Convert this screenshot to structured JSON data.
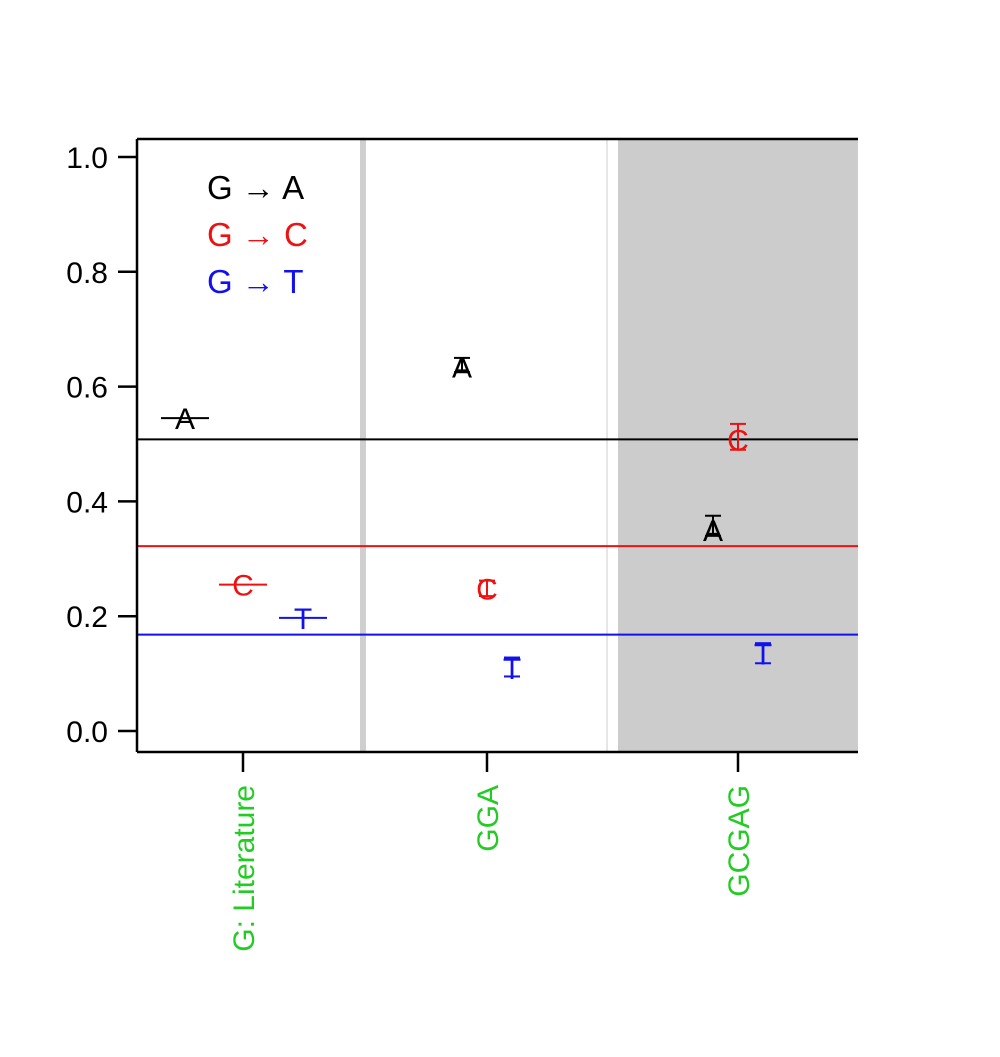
{
  "chart_data": {
    "type": "scatter",
    "title": "",
    "xlabel": "",
    "ylabel": "",
    "ylim": [
      -0.04,
      1.03
    ],
    "yticks": [
      "0.0",
      "0.2",
      "0.4",
      "0.6",
      "0.8",
      "1.0"
    ],
    "grid": false,
    "legend_position": "top-left",
    "categories": [
      "G: Literature",
      "GGA",
      "GCGAG"
    ],
    "category_color": "#22cc22",
    "panels": [
      {
        "category": "G: Literature",
        "shaded": false
      },
      {
        "category": "GGA",
        "shaded": false
      },
      {
        "category": "GCGAG",
        "shaded": true
      }
    ],
    "series": [
      {
        "name": "G → A",
        "symbol": "A",
        "color": "#000000",
        "reference_line": 0.508,
        "points": [
          {
            "category": "G: Literature",
            "value": 0.545,
            "low": 0.545,
            "high": 0.545
          },
          {
            "category": "GGA",
            "value": 0.635,
            "low": 0.625,
            "high": 0.65
          },
          {
            "category": "GCGAG",
            "value": 0.35,
            "low": 0.34,
            "high": 0.375
          }
        ]
      },
      {
        "name": "G → C",
        "symbol": "C",
        "color": "#ee1111",
        "reference_line": 0.322,
        "points": [
          {
            "category": "G: Literature",
            "value": 0.255,
            "low": 0.255,
            "high": 0.255
          },
          {
            "category": "GGA",
            "value": 0.248,
            "low": 0.235,
            "high": 0.262
          },
          {
            "category": "GCGAG",
            "value": 0.508,
            "low": 0.49,
            "high": 0.535
          }
        ]
      },
      {
        "name": "G → T",
        "symbol": "T",
        "color": "#1111ee",
        "reference_line": 0.168,
        "points": [
          {
            "category": "G: Literature",
            "value": 0.197,
            "low": 0.197,
            "high": 0.197
          },
          {
            "category": "GGA",
            "value": 0.11,
            "low": 0.095,
            "high": 0.128
          },
          {
            "category": "GCGAG",
            "value": 0.135,
            "low": 0.118,
            "high": 0.153
          }
        ]
      }
    ]
  }
}
